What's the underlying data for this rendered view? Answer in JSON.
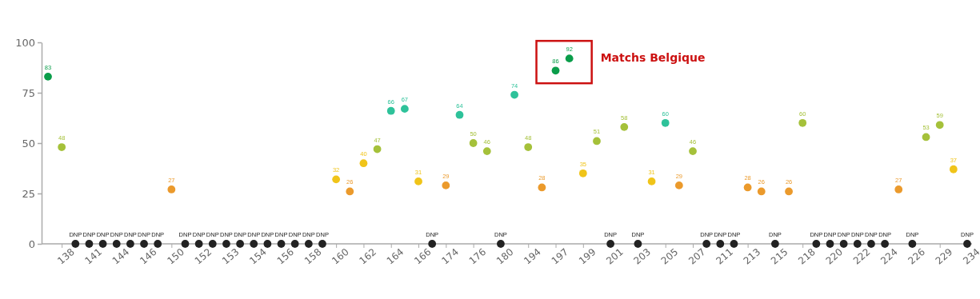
{
  "chart_data": {
    "type": "scatter",
    "marker": "circle",
    "ylim": [
      0,
      100
    ],
    "yticks": [
      0,
      25,
      50,
      75,
      100
    ],
    "categories": [
      null,
      "138",
      null,
      "141",
      null,
      "144",
      null,
      "146",
      null,
      "150",
      null,
      "152",
      null,
      "153",
      null,
      "154",
      null,
      "156",
      null,
      "158",
      null,
      "160",
      null,
      "162",
      null,
      "164",
      null,
      "166",
      null,
      "174",
      null,
      "176",
      null,
      "180",
      null,
      "194",
      null,
      "197",
      null,
      "199",
      null,
      "201",
      null,
      "203",
      null,
      "205",
      null,
      "207",
      null,
      "211",
      null,
      "213",
      null,
      "215",
      null,
      "218",
      null,
      "220",
      null,
      "222",
      null,
      "224",
      null,
      "226",
      null,
      "229",
      null,
      "234"
    ],
    "values": [
      83,
      48,
      0,
      0,
      0,
      0,
      0,
      0,
      0,
      27,
      0,
      0,
      0,
      0,
      0,
      0,
      0,
      0,
      0,
      0,
      0,
      32,
      26,
      40,
      47,
      66,
      67,
      31,
      0,
      29,
      64,
      50,
      46,
      0,
      74,
      48,
      28,
      86,
      92,
      35,
      51,
      0,
      58,
      0,
      31,
      60,
      29,
      46,
      0,
      0,
      0,
      28,
      26,
      0,
      26,
      60,
      0,
      0,
      0,
      0,
      0,
      0,
      27,
      0,
      53,
      59,
      37,
      0
    ],
    "value_labels": [
      "83",
      "48",
      "DNP",
      "DNP",
      "DNP",
      "DNP",
      "DNP",
      "DNP",
      "DNP",
      "27",
      "DNP",
      "DNP",
      "DNP",
      "DNP",
      "DNP",
      "DNP",
      "DNP",
      "DNP",
      "DNP",
      "DNP",
      "DNP",
      "32",
      "26",
      "40",
      "47",
      "66",
      "67",
      "31",
      "DNP",
      "29",
      "64",
      "50",
      "46",
      "DNP",
      "74",
      "48",
      "28",
      "86",
      "92",
      "35",
      "51",
      "DNP",
      "58",
      "DNP",
      "31",
      "60",
      "29",
      "46",
      "DNP",
      "DNP",
      "DNP",
      "28",
      "26",
      "DNP",
      "26",
      "60",
      "DNP",
      "DNP",
      "DNP",
      "DNP",
      "DNP",
      "DNP",
      "27",
      "DNP",
      "53",
      "59",
      "37",
      "DNP"
    ],
    "colors": [
      "#0a9d4a",
      "#a5c13a",
      "#222222",
      "#222222",
      "#222222",
      "#222222",
      "#222222",
      "#222222",
      "#222222",
      "#eb9a2c",
      "#222222",
      "#222222",
      "#222222",
      "#222222",
      "#222222",
      "#222222",
      "#222222",
      "#222222",
      "#222222",
      "#222222",
      "#222222",
      "#f0c419",
      "#eb9a2c",
      "#f0c419",
      "#a5c13a",
      "#2ec29a",
      "#2ec29a",
      "#f0c419",
      "#222222",
      "#eb9a2c",
      "#2ec29a",
      "#a5c13a",
      "#a5c13a",
      "#222222",
      "#2ec29a",
      "#a5c13a",
      "#eb9a2c",
      "#0a9d4a",
      "#0a9d4a",
      "#f0c419",
      "#a5c13a",
      "#222222",
      "#a5c13a",
      "#222222",
      "#f0c419",
      "#2ec29a",
      "#eb9a2c",
      "#a5c13a",
      "#222222",
      "#222222",
      "#222222",
      "#eb9a2c",
      "#eb9a2c",
      "#222222",
      "#eb9a2c",
      "#a5c13a",
      "#222222",
      "#222222",
      "#222222",
      "#222222",
      "#222222",
      "#222222",
      "#eb9a2c",
      "#222222",
      "#a5c13a",
      "#a5c13a",
      "#f0c419",
      "#222222"
    ],
    "annotations": [
      "Matchs Belgique"
    ]
  }
}
